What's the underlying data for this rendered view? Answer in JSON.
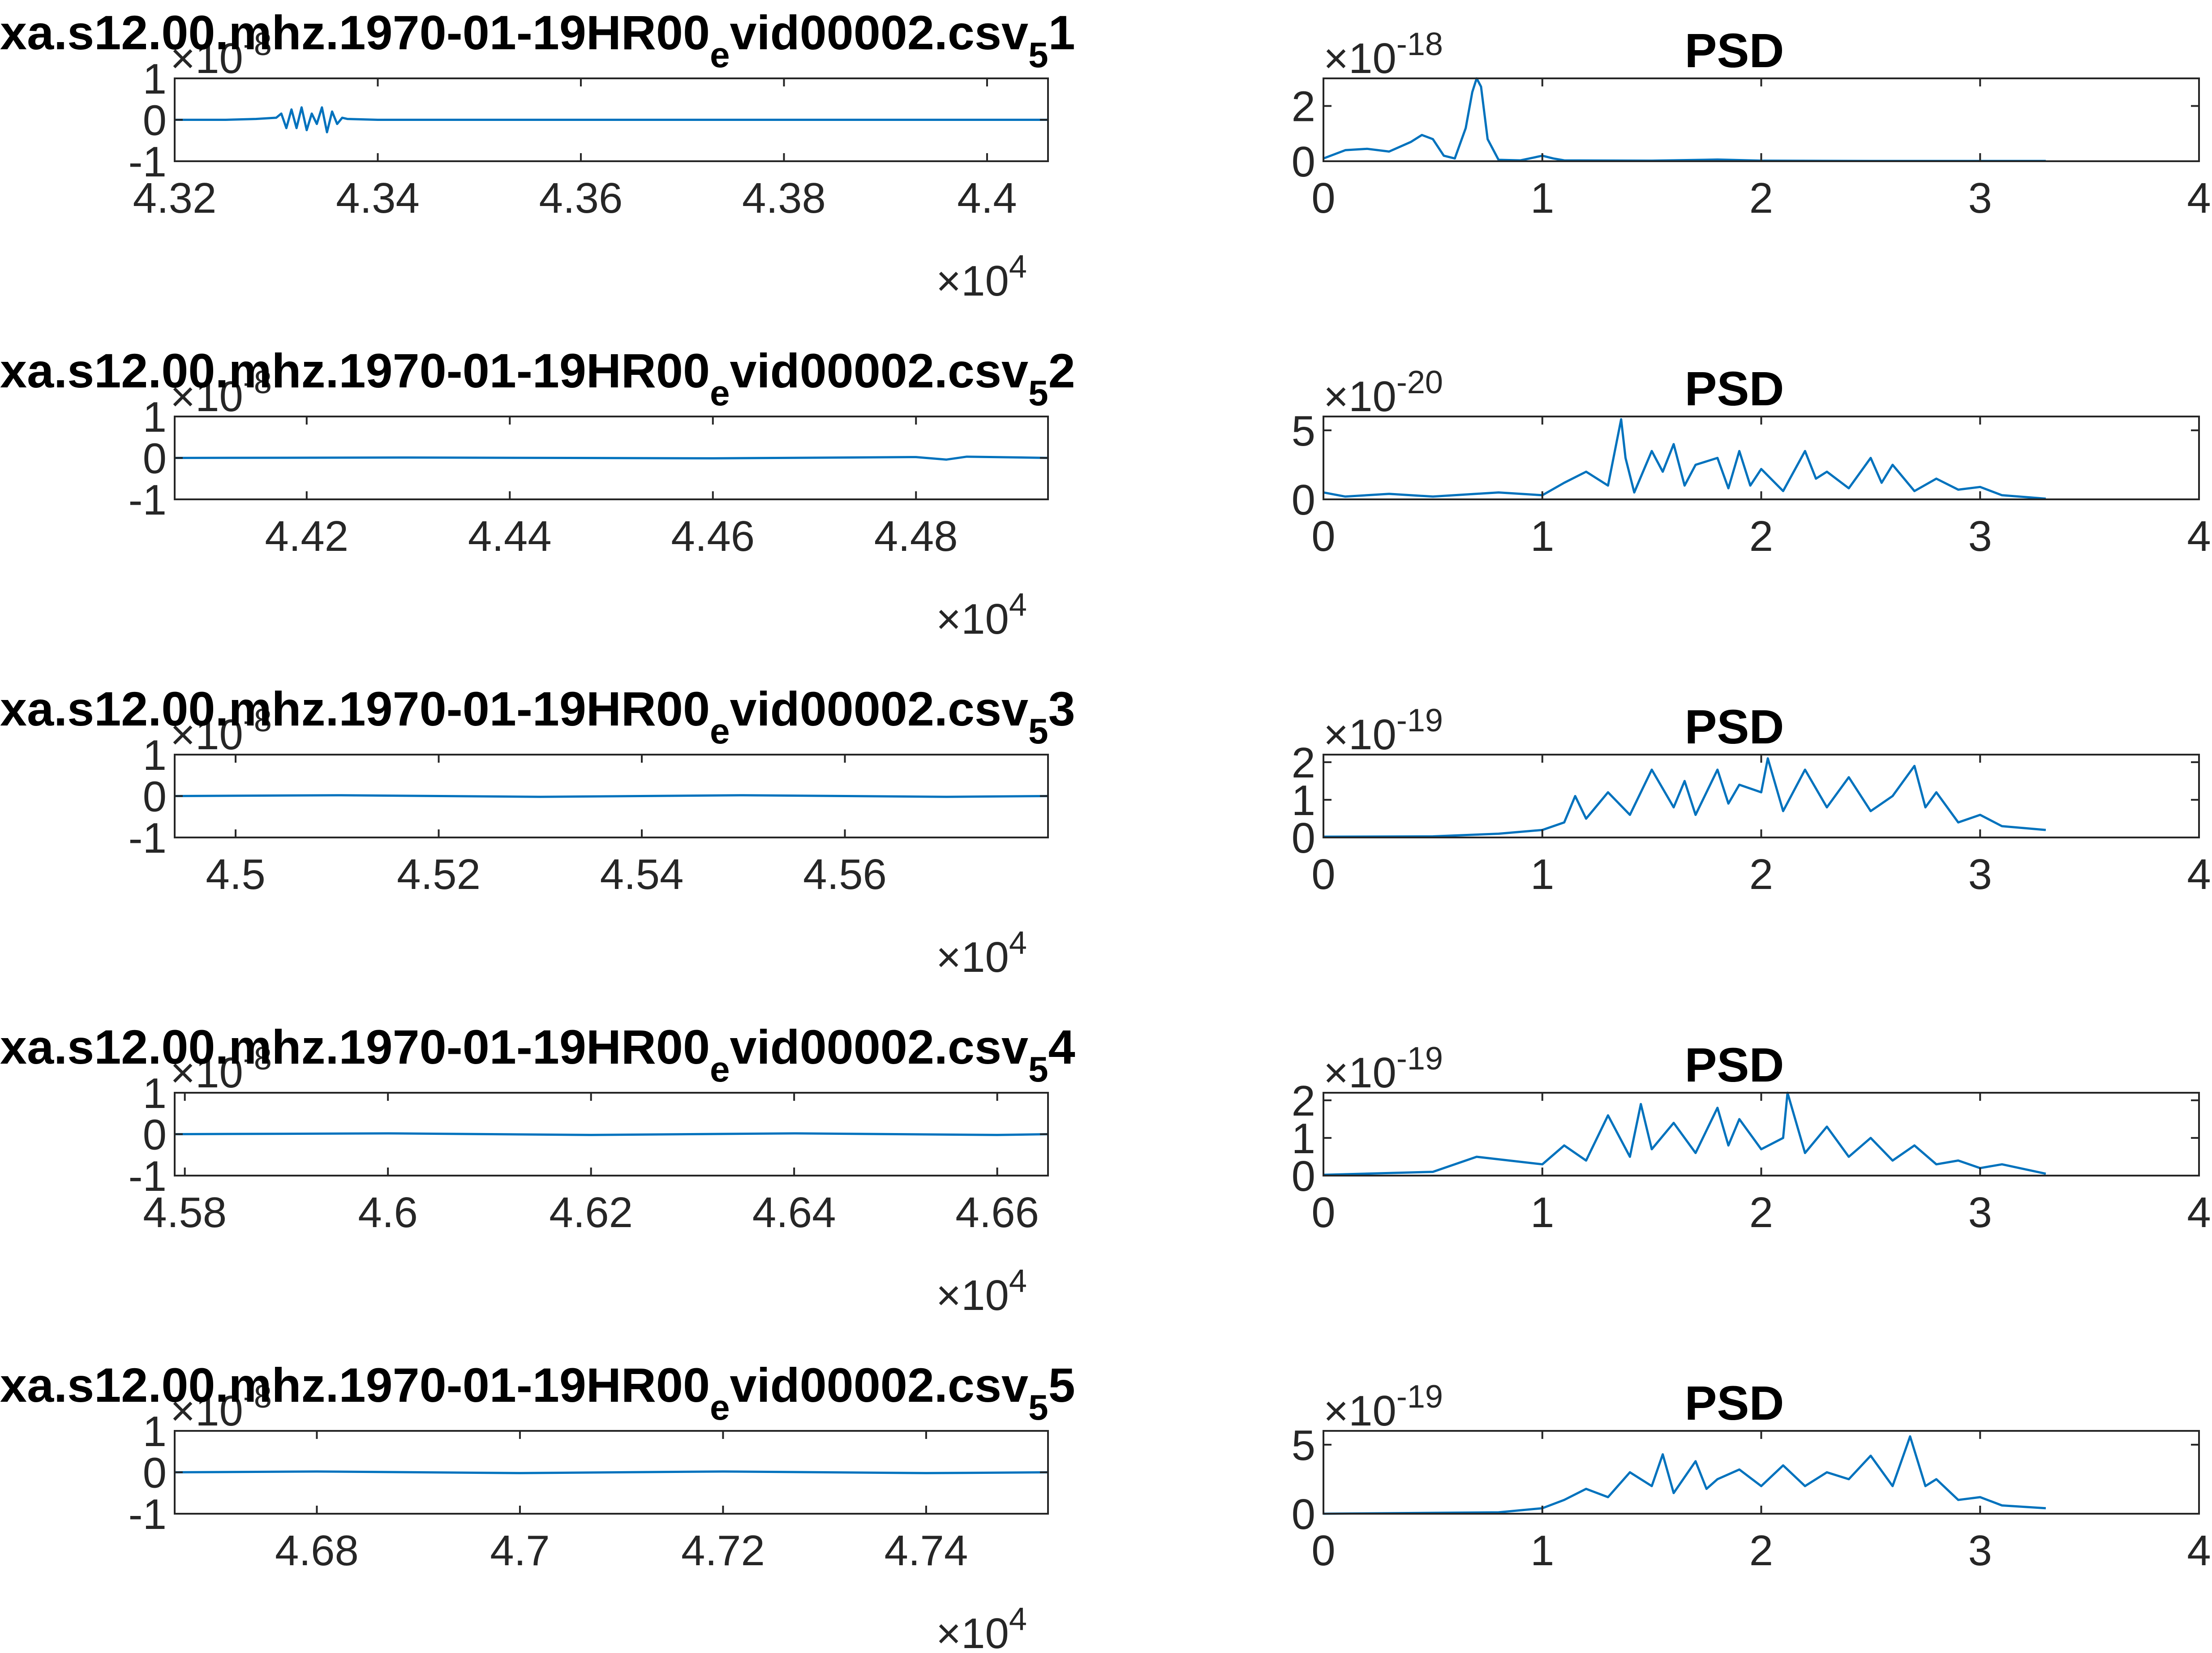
{
  "figure": {
    "colors": {
      "line": "#0072BD",
      "axis": "#262626",
      "text": "#000000",
      "background": "#ffffff"
    },
    "x_exponent_label": "×10",
    "x_exponent": "4",
    "y_exponent_base": "×10"
  },
  "chart_data": [
    {
      "type": "line",
      "title": "xa.s12.00.mhz.1970-01-19HR00",
      "title_sub": "e",
      "title_tail": "vid00002.csv",
      "title_sub2": "5",
      "title_end": "1",
      "y_exponent": "-8",
      "xlim": [
        43200,
        44060
      ],
      "ylim": [
        -1,
        1
      ],
      "xticks": [
        43200,
        43400,
        43600,
        43800,
        44000
      ],
      "xtick_labels": [
        "4.32",
        "4.34",
        "4.36",
        "4.38",
        "4.4"
      ],
      "yticks": [
        -1,
        0,
        1
      ],
      "ytick_labels": [
        "-1",
        "0",
        "1"
      ],
      "series": [
        {
          "x": [
            43200,
            43250,
            43280,
            43300,
            43305,
            43310,
            43315,
            43320,
            43325,
            43330,
            43335,
            43340,
            43345,
            43350,
            43355,
            43360,
            43365,
            43370,
            43400,
            43450,
            43500,
            43600,
            43700,
            43800,
            43900,
            44000,
            44060
          ],
          "values": [
            0,
            0,
            0.02,
            0.05,
            0.15,
            -0.2,
            0.25,
            -0.2,
            0.3,
            -0.25,
            0.15,
            -0.1,
            0.3,
            -0.3,
            0.2,
            -0.1,
            0.05,
            0.02,
            0,
            0,
            0,
            0,
            0,
            0,
            0,
            0,
            0
          ]
        }
      ]
    },
    {
      "type": "line",
      "title": "PSD",
      "y_exponent": "-18",
      "xlim": [
        0,
        4
      ],
      "ylim": [
        0,
        3
      ],
      "xticks": [
        0,
        1,
        2,
        3,
        4
      ],
      "xtick_labels": [
        "0",
        "1",
        "2",
        "3",
        "4"
      ],
      "yticks": [
        0,
        2
      ],
      "ytick_labels": [
        "0",
        "2"
      ],
      "series": [
        {
          "x": [
            0,
            0.1,
            0.2,
            0.3,
            0.4,
            0.45,
            0.5,
            0.55,
            0.6,
            0.65,
            0.68,
            0.7,
            0.72,
            0.75,
            0.8,
            0.9,
            1.0,
            1.05,
            1.1,
            1.5,
            1.8,
            2.0,
            2.5,
            3.0,
            3.3
          ],
          "values": [
            0.1,
            0.4,
            0.45,
            0.35,
            0.7,
            0.95,
            0.8,
            0.2,
            0.1,
            1.2,
            2.5,
            3.0,
            2.7,
            0.8,
            0.05,
            0.03,
            0.2,
            0.1,
            0.03,
            0.02,
            0.06,
            0.02,
            0.01,
            0.01,
            0.01
          ]
        }
      ]
    },
    {
      "type": "line",
      "title": "xa.s12.00.mhz.1970-01-19HR00",
      "title_sub": "e",
      "title_tail": "vid00002.csv",
      "title_sub2": "5",
      "title_end": "2",
      "y_exponent": "-8",
      "xlim": [
        44070,
        44930
      ],
      "ylim": [
        -1,
        1
      ],
      "xticks": [
        44200,
        44400,
        44600,
        44800
      ],
      "xtick_labels": [
        "4.42",
        "4.44",
        "4.46",
        "4.48"
      ],
      "yticks": [
        -1,
        0,
        1
      ],
      "ytick_labels": [
        "-1",
        "0",
        "1"
      ],
      "series": [
        {
          "x": [
            44070,
            44300,
            44600,
            44800,
            44830,
            44850,
            44930
          ],
          "values": [
            0,
            0.01,
            -0.01,
            0.02,
            -0.04,
            0.03,
            0
          ]
        }
      ]
    },
    {
      "type": "line",
      "title": "PSD",
      "y_exponent": "-20",
      "xlim": [
        0,
        4
      ],
      "ylim": [
        0,
        6
      ],
      "xticks": [
        0,
        1,
        2,
        3,
        4
      ],
      "xtick_labels": [
        "0",
        "1",
        "2",
        "3",
        "4"
      ],
      "yticks": [
        0,
        5
      ],
      "ytick_labels": [
        "0",
        "5"
      ],
      "series": [
        {
          "x": [
            0,
            0.1,
            0.3,
            0.5,
            0.8,
            1.0,
            1.1,
            1.2,
            1.3,
            1.36,
            1.38,
            1.42,
            1.5,
            1.55,
            1.6,
            1.65,
            1.7,
            1.8,
            1.85,
            1.9,
            1.95,
            2.0,
            2.1,
            2.2,
            2.25,
            2.3,
            2.4,
            2.5,
            2.55,
            2.6,
            2.7,
            2.8,
            2.9,
            3.0,
            3.1,
            3.3
          ],
          "values": [
            0.5,
            0.2,
            0.4,
            0.2,
            0.5,
            0.3,
            1.2,
            2.0,
            1.0,
            5.8,
            3.0,
            0.5,
            3.5,
            2.0,
            4.0,
            1.0,
            2.5,
            3.0,
            0.8,
            3.5,
            1.0,
            2.2,
            0.6,
            3.5,
            1.5,
            2.0,
            0.8,
            3.0,
            1.2,
            2.5,
            0.6,
            1.5,
            0.7,
            0.9,
            0.3,
            0.05
          ]
        }
      ]
    },
    {
      "type": "line",
      "title": "xa.s12.00.mhz.1970-01-19HR00",
      "title_sub": "e",
      "title_tail": "vid00002.csv",
      "title_sub2": "5",
      "title_end": "3",
      "y_exponent": "-8",
      "xlim": [
        44940,
        45800
      ],
      "ylim": [
        -1,
        1
      ],
      "xticks": [
        45000,
        45200,
        45400,
        45600
      ],
      "xtick_labels": [
        "4.5",
        "4.52",
        "4.54",
        "4.56"
      ],
      "yticks": [
        -1,
        0,
        1
      ],
      "ytick_labels": [
        "-1",
        "0",
        "1"
      ],
      "series": [
        {
          "x": [
            44940,
            45100,
            45300,
            45500,
            45700,
            45800
          ],
          "values": [
            0,
            0.02,
            -0.02,
            0.02,
            -0.02,
            0
          ]
        }
      ]
    },
    {
      "type": "line",
      "title": "PSD",
      "y_exponent": "-19",
      "xlim": [
        0,
        4
      ],
      "ylim": [
        0,
        2.2
      ],
      "xticks": [
        0,
        1,
        2,
        3,
        4
      ],
      "xtick_labels": [
        "0",
        "1",
        "2",
        "3",
        "4"
      ],
      "yticks": [
        0,
        1,
        2
      ],
      "ytick_labels": [
        "0",
        "1",
        "2"
      ],
      "series": [
        {
          "x": [
            0,
            0.5,
            0.8,
            1.0,
            1.1,
            1.15,
            1.2,
            1.3,
            1.4,
            1.5,
            1.6,
            1.65,
            1.7,
            1.8,
            1.85,
            1.9,
            2.0,
            2.03,
            2.1,
            2.2,
            2.3,
            2.4,
            2.5,
            2.6,
            2.7,
            2.75,
            2.8,
            2.9,
            3.0,
            3.1,
            3.3
          ],
          "values": [
            0.02,
            0.03,
            0.1,
            0.2,
            0.4,
            1.1,
            0.5,
            1.2,
            0.6,
            1.8,
            0.8,
            1.5,
            0.6,
            1.8,
            0.9,
            1.4,
            1.2,
            2.1,
            0.7,
            1.8,
            0.8,
            1.6,
            0.7,
            1.1,
            1.9,
            0.8,
            1.2,
            0.4,
            0.6,
            0.3,
            0.2
          ]
        }
      ]
    },
    {
      "type": "line",
      "title": "xa.s12.00.mhz.1970-01-19HR00",
      "title_sub": "e",
      "title_tail": "vid00002.csv",
      "title_sub2": "5",
      "title_end": "4",
      "y_exponent": "-8",
      "xlim": [
        45790,
        46650
      ],
      "ylim": [
        -1,
        1
      ],
      "xticks": [
        45800,
        46000,
        46200,
        46400,
        46600
      ],
      "xtick_labels": [
        "4.58",
        "4.6",
        "4.62",
        "4.64",
        "4.66"
      ],
      "yticks": [
        -1,
        0,
        1
      ],
      "ytick_labels": [
        "-1",
        "0",
        "1"
      ],
      "series": [
        {
          "x": [
            45790,
            46000,
            46200,
            46400,
            46600,
            46650
          ],
          "values": [
            0,
            0.02,
            -0.02,
            0.02,
            -0.02,
            0
          ]
        }
      ]
    },
    {
      "type": "line",
      "title": "PSD",
      "y_exponent": "-19",
      "xlim": [
        0,
        4
      ],
      "ylim": [
        0,
        2.2
      ],
      "xticks": [
        0,
        1,
        2,
        3,
        4
      ],
      "xtick_labels": [
        "0",
        "1",
        "2",
        "3",
        "4"
      ],
      "yticks": [
        0,
        1,
        2
      ],
      "ytick_labels": [
        "0",
        "1",
        "2"
      ],
      "series": [
        {
          "x": [
            0,
            0.5,
            0.7,
            1.0,
            1.1,
            1.2,
            1.3,
            1.4,
            1.45,
            1.5,
            1.6,
            1.7,
            1.8,
            1.85,
            1.9,
            2.0,
            2.1,
            2.12,
            2.2,
            2.3,
            2.4,
            2.5,
            2.6,
            2.7,
            2.8,
            2.9,
            3.0,
            3.1,
            3.3
          ],
          "values": [
            0.02,
            0.1,
            0.5,
            0.3,
            0.8,
            0.4,
            1.6,
            0.5,
            1.9,
            0.7,
            1.4,
            0.6,
            1.8,
            0.8,
            1.5,
            0.7,
            1.0,
            2.3,
            0.6,
            1.3,
            0.5,
            1.0,
            0.4,
            0.8,
            0.3,
            0.4,
            0.2,
            0.3,
            0.05
          ]
        }
      ]
    },
    {
      "type": "line",
      "title": "xa.s12.00.mhz.1970-01-19HR00",
      "title_sub": "e",
      "title_tail": "vid00002.csv",
      "title_sub2": "5",
      "title_end": "5",
      "y_exponent": "-8",
      "xlim": [
        46660,
        47520
      ],
      "ylim": [
        -1,
        1
      ],
      "xticks": [
        46800,
        47000,
        47200,
        47400
      ],
      "xtick_labels": [
        "4.68",
        "4.7",
        "4.72",
        "4.74"
      ],
      "yticks": [
        -1,
        0,
        1
      ],
      "ytick_labels": [
        "-1",
        "0",
        "1"
      ],
      "series": [
        {
          "x": [
            46660,
            46800,
            47000,
            47200,
            47400,
            47520
          ],
          "values": [
            0,
            0.02,
            -0.02,
            0.02,
            -0.02,
            0
          ]
        }
      ]
    },
    {
      "type": "line",
      "title": "PSD",
      "y_exponent": "-19",
      "xlim": [
        0,
        4
      ],
      "ylim": [
        0,
        6
      ],
      "xticks": [
        0,
        1,
        2,
        3,
        4
      ],
      "xtick_labels": [
        "0",
        "1",
        "2",
        "3",
        "4"
      ],
      "yticks": [
        0,
        5
      ],
      "ytick_labels": [
        "0",
        "5"
      ],
      "series": [
        {
          "x": [
            0,
            0.8,
            1.0,
            1.1,
            1.2,
            1.3,
            1.4,
            1.5,
            1.55,
            1.6,
            1.7,
            1.75,
            1.8,
            1.9,
            2.0,
            2.1,
            2.2,
            2.3,
            2.4,
            2.5,
            2.6,
            2.68,
            2.75,
            2.8,
            2.9,
            3.0,
            3.1,
            3.3
          ],
          "values": [
            0,
            0.1,
            0.4,
            1.0,
            1.8,
            1.2,
            3.0,
            2.0,
            4.3,
            1.5,
            3.8,
            1.8,
            2.5,
            3.2,
            2.0,
            3.5,
            2.0,
            3.0,
            2.5,
            4.2,
            2.0,
            5.6,
            2.0,
            2.5,
            1.0,
            1.2,
            0.6,
            0.4
          ]
        }
      ]
    }
  ]
}
